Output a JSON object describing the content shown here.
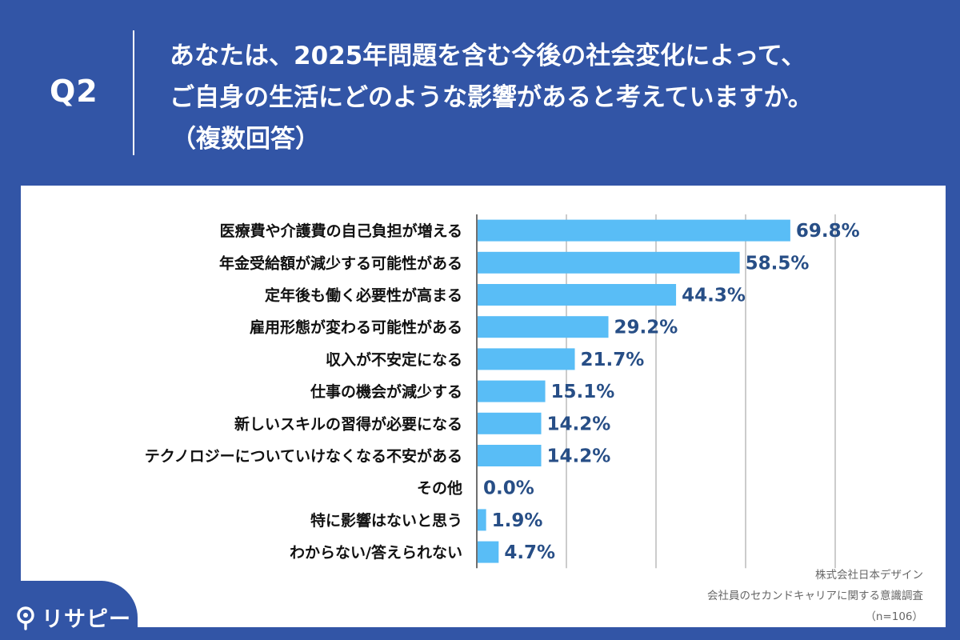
{
  "header": {
    "q_label": "Q2",
    "question_line1": "あなたは、2025年問題を含む今後の社会変化によって、",
    "question_line2": "ご自身の生活にどのような影響があると考えていますか。",
    "question_line3": "（複数回答）"
  },
  "chart_data": {
    "type": "bar",
    "orientation": "horizontal",
    "categories": [
      "医療費や介護費の自己負担が増える",
      "年金受給額が減少する可能性がある",
      "定年後も働く必要性が高まる",
      "雇用形態が変わる可能性がある",
      "収入が不安定になる",
      "仕事の機会が減少する",
      "新しいスキルの習得が必要になる",
      "テクノロジーについていけなくなる不安がある",
      "その他",
      "特に影響はないと思う",
      "わからない/答えられない"
    ],
    "values": [
      69.8,
      58.5,
      44.3,
      29.2,
      21.7,
      15.1,
      14.2,
      14.2,
      0.0,
      1.9,
      4.7
    ],
    "value_labels": [
      "69.8%",
      "58.5%",
      "44.3%",
      "29.2%",
      "21.7%",
      "15.1%",
      "14.2%",
      "14.2%",
      "0.0%",
      "1.9%",
      "4.7%"
    ],
    "xlim": [
      0,
      80
    ],
    "grid": true,
    "unit": "%",
    "color": "#59bdf6"
  },
  "source": {
    "company": "株式会社日本デザイン",
    "survey": "会社員のセカンドキャリアに関する意識調査",
    "n": "（n=106）"
  },
  "logo": {
    "text": "リサピー"
  },
  "colors": {
    "background": "#3255a6",
    "bar": "#59bdf6",
    "value_label": "#274e86"
  }
}
